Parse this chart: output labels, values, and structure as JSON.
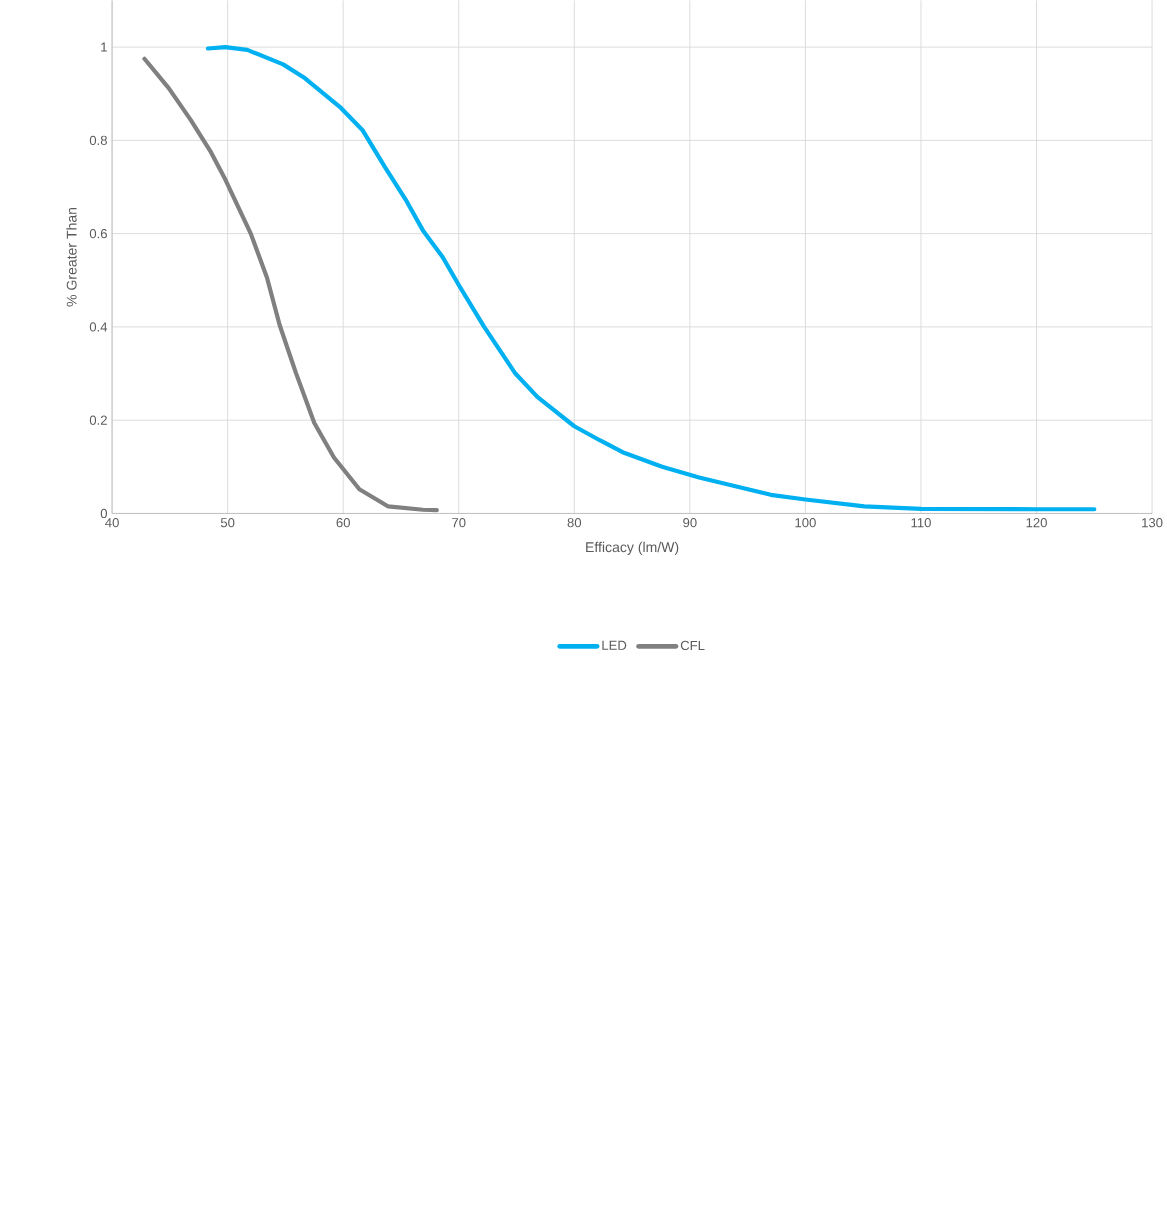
{
  "chart_data": {
    "type": "line",
    "xlabel": "Efficacy (lm/W)",
    "ylabel": "% Greater Than",
    "xlim": [
      40,
      130
    ],
    "ylim": [
      0,
      1.1
    ],
    "xticks": [
      40,
      50,
      60,
      70,
      80,
      90,
      100,
      110,
      120,
      130
    ],
    "yticks": [
      0,
      0.2,
      0.4,
      0.6,
      0.8,
      1
    ],
    "grid": true,
    "legend": "bottom",
    "marker": "none",
    "line_style": "solid",
    "series": [
      {
        "name": "LED",
        "color": "#00b0f0",
        "x": [
          48.3,
          49.8,
          51.7,
          54.8,
          56.7,
          59.7,
          61.7,
          63.6,
          65.5,
          66.9,
          68.6,
          70,
          72.2,
          74.9,
          76.8,
          80,
          82.2,
          84.3,
          87.6,
          90.8,
          97,
          100,
          105.1,
          110,
          120,
          125
        ],
        "values": [
          0.997,
          1.0,
          0.994,
          0.963,
          0.933,
          0.872,
          0.821,
          0.743,
          0.669,
          0.607,
          0.55,
          0.49,
          0.4,
          0.3,
          0.25,
          0.187,
          0.157,
          0.13,
          0.1,
          0.077,
          0.04,
          0.03,
          0.015,
          0.01,
          0.009,
          0.009
        ]
      },
      {
        "name": "CFL",
        "color": "#808080",
        "x": [
          42.8,
          44.9,
          46.8,
          48.5,
          49.8,
          52,
          53.4,
          54.5,
          55.9,
          57.5,
          59.2,
          61.4,
          63.9,
          66.9,
          68.1
        ],
        "values": [
          0.975,
          0.912,
          0.844,
          0.777,
          0.716,
          0.6,
          0.506,
          0.404,
          0.302,
          0.194,
          0.12,
          0.052,
          0.015,
          0.008,
          0.007
        ]
      }
    ]
  }
}
